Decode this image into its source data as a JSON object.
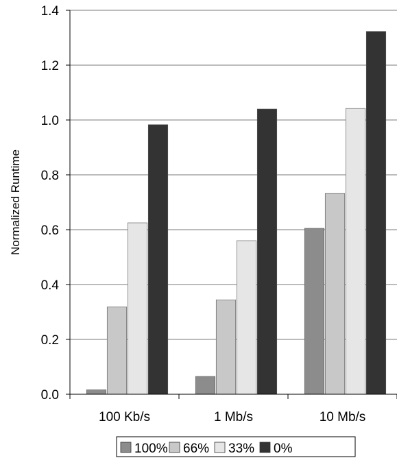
{
  "chart_data": {
    "type": "bar",
    "categories": [
      "100 Kb/s",
      "1 Mb/s",
      "10 Mb/s"
    ],
    "series": [
      {
        "name": "100%",
        "color": "#8c8c8c",
        "values": [
          0.016,
          0.065,
          0.605
        ]
      },
      {
        "name": "66%",
        "color": "#c8c8c8",
        "values": [
          0.318,
          0.344,
          0.732
        ]
      },
      {
        "name": "33%",
        "color": "#e6e6e6",
        "values": [
          0.625,
          0.56,
          1.042
        ]
      },
      {
        "name": "0%",
        "color": "#333333",
        "values": [
          0.983,
          1.04,
          1.323
        ]
      }
    ],
    "title": "",
    "xlabel": "",
    "ylabel": "Normalized Runtime",
    "ylim": [
      0,
      1.4
    ],
    "yticks": [
      "0.0",
      "0.2",
      "0.4",
      "0.6",
      "0.8",
      "1.0",
      "1.2",
      "1.4"
    ],
    "grid": true,
    "legend": "bottom"
  }
}
